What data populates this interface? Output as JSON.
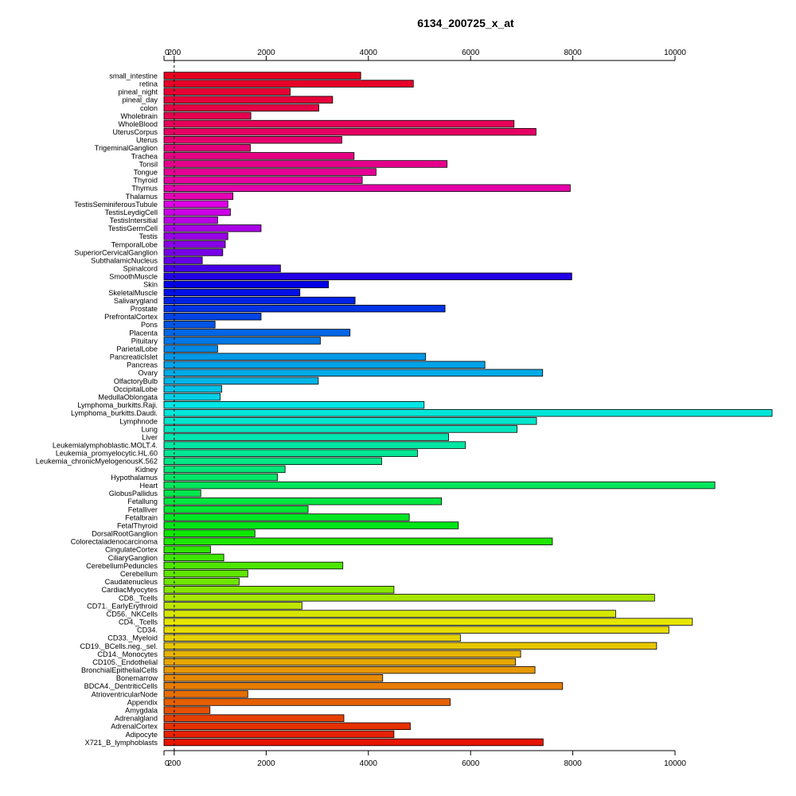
{
  "chart_data": {
    "type": "bar",
    "orientation": "horizontal",
    "title": "6134_200725_x_at",
    "xlabel": "",
    "ylabel": "",
    "xlim": [
      0,
      12000
    ],
    "ticks": [
      {
        "value": 0,
        "label": "0"
      },
      {
        "value": 200,
        "label": "200"
      },
      {
        "value": 2000,
        "label": "2000"
      },
      {
        "value": 4000,
        "label": "4000"
      },
      {
        "value": 6000,
        "label": "6000"
      },
      {
        "value": 8000,
        "label": "8000"
      },
      {
        "value": 10000,
        "label": "10000"
      }
    ],
    "reference_line": 200,
    "grid": false,
    "bars": [
      {
        "label": "small_intestine",
        "value": 3850,
        "color": "#e6001e"
      },
      {
        "label": "retina",
        "value": 4880,
        "color": "#e60028"
      },
      {
        "label": "pineal_night",
        "value": 2470,
        "color": "#e60032"
      },
      {
        "label": "pineal_day",
        "value": 3300,
        "color": "#e6003c"
      },
      {
        "label": "colon",
        "value": 3030,
        "color": "#e60046"
      },
      {
        "label": "Wholebrain",
        "value": 1700,
        "color": "#e60050"
      },
      {
        "label": "WholeBlood",
        "value": 6850,
        "color": "#e6005a"
      },
      {
        "label": "UterusCorpus",
        "value": 7280,
        "color": "#e60064"
      },
      {
        "label": "Uterus",
        "value": 3480,
        "color": "#e6006e"
      },
      {
        "label": "TrigeminalGanglion",
        "value": 1690,
        "color": "#e60078"
      },
      {
        "label": "Trachea",
        "value": 3720,
        "color": "#e60082"
      },
      {
        "label": "Tonsil",
        "value": 5540,
        "color": "#e6008c"
      },
      {
        "label": "Tongue",
        "value": 4150,
        "color": "#e60096"
      },
      {
        "label": "Thyroid",
        "value": 3880,
        "color": "#e600a0"
      },
      {
        "label": "Thymus",
        "value": 7950,
        "color": "#e600aa"
      },
      {
        "label": "Thalamus",
        "value": 1350,
        "color": "#e600b4"
      },
      {
        "label": "TestisSeminiferousTubule",
        "value": 1250,
        "color": "#dd00e6"
      },
      {
        "label": "TestisLeydigCell",
        "value": 1300,
        "color": "#cc00e6"
      },
      {
        "label": "TestisIntersitial",
        "value": 1050,
        "color": "#bb00e6"
      },
      {
        "label": "TestisGermCell",
        "value": 1900,
        "color": "#aa00e6"
      },
      {
        "label": "Testis",
        "value": 1250,
        "color": "#9900e6"
      },
      {
        "label": "TemporalLobe",
        "value": 1200,
        "color": "#8800e6"
      },
      {
        "label": "SuperiorCervicalGanglion",
        "value": 1150,
        "color": "#7700e6"
      },
      {
        "label": "SubthalamicNucleus",
        "value": 750,
        "color": "#6600e6"
      },
      {
        "label": "Spinalcord",
        "value": 2280,
        "color": "#4400e6"
      },
      {
        "label": "SmoothMuscle",
        "value": 7980,
        "color": "#2200e6"
      },
      {
        "label": "Skin",
        "value": 3220,
        "color": "#0000e6"
      },
      {
        "label": "SkeletalMuscle",
        "value": 2660,
        "color": "#0011e6"
      },
      {
        "label": "Salivarygland",
        "value": 3740,
        "color": "#0022e6"
      },
      {
        "label": "Prostate",
        "value": 5500,
        "color": "#0033e6"
      },
      {
        "label": "PrefrontalCortex",
        "value": 1900,
        "color": "#0044e6"
      },
      {
        "label": "Pons",
        "value": 1000,
        "color": "#0055e6"
      },
      {
        "label": "Placenta",
        "value": 3640,
        "color": "#0066e6"
      },
      {
        "label": "Pituitary",
        "value": 3060,
        "color": "#0077e6"
      },
      {
        "label": "ParietalLobe",
        "value": 1050,
        "color": "#0088e6"
      },
      {
        "label": "PancreaticIslet",
        "value": 5120,
        "color": "#0099e6"
      },
      {
        "label": "Pancreas",
        "value": 6280,
        "color": "#00a2e6"
      },
      {
        "label": "Ovary",
        "value": 7410,
        "color": "#00aae6"
      },
      {
        "label": "OlfactoryBulb",
        "value": 3020,
        "color": "#00b4e6"
      },
      {
        "label": "OccipitalLobe",
        "value": 1130,
        "color": "#00c2e6"
      },
      {
        "label": "MedullaOblongata",
        "value": 1100,
        "color": "#00d0e6"
      },
      {
        "label": "Lymphoma_burkitts.Raji.",
        "value": 5090,
        "color": "#00e6e6"
      },
      {
        "label": "Lymphoma_burkitts.Daudi.",
        "value": 11900,
        "color": "#00e6d9"
      },
      {
        "label": "Lymphnode",
        "value": 7290,
        "color": "#00e6cc"
      },
      {
        "label": "Lung",
        "value": 6910,
        "color": "#00e6be"
      },
      {
        "label": "Liver",
        "value": 5570,
        "color": "#00e6b0"
      },
      {
        "label": "Leukemialymphoblastic.MOLT.4.",
        "value": 5900,
        "color": "#00e6a2"
      },
      {
        "label": "Leukemia_promyelocytic.HL.60",
        "value": 4960,
        "color": "#00e694"
      },
      {
        "label": "Leukemia_chronicMyelogenousK.562",
        "value": 4260,
        "color": "#00e686"
      },
      {
        "label": "Kidney",
        "value": 2370,
        "color": "#00e678"
      },
      {
        "label": "Hypothalamus",
        "value": 2220,
        "color": "#00e66a"
      },
      {
        "label": "Heart",
        "value": 10780,
        "color": "#00e65c"
      },
      {
        "label": "GlobusPallidus",
        "value": 720,
        "color": "#00e64e"
      },
      {
        "label": "Fetallung",
        "value": 5430,
        "color": "#00e640"
      },
      {
        "label": "Fetalliver",
        "value": 2820,
        "color": "#00e632"
      },
      {
        "label": "Fetalbrain",
        "value": 4800,
        "color": "#00e624"
      },
      {
        "label": "FetalThyroid",
        "value": 5760,
        "color": "#00e616"
      },
      {
        "label": "DorsalRootGanglion",
        "value": 1780,
        "color": "#0ee600"
      },
      {
        "label": "Colorectaladenocarcinoma",
        "value": 7600,
        "color": "#1ee600"
      },
      {
        "label": "CingulateCortex",
        "value": 910,
        "color": "#2ee600"
      },
      {
        "label": "CiliaryGanglion",
        "value": 1170,
        "color": "#3ee600"
      },
      {
        "label": "CerebellumPeduncles",
        "value": 3500,
        "color": "#4ee600"
      },
      {
        "label": "Cerebellum",
        "value": 1640,
        "color": "#5ee600"
      },
      {
        "label": "Caudatenucleus",
        "value": 1470,
        "color": "#6ee600"
      },
      {
        "label": "CardiacMyocytes",
        "value": 4500,
        "color": "#86e600"
      },
      {
        "label": "CD8._Tcells",
        "value": 9600,
        "color": "#a6e600"
      },
      {
        "label": "CD71._EarlyErythroid",
        "value": 2700,
        "color": "#bee600"
      },
      {
        "label": "CD56._NKCells",
        "value": 8840,
        "color": "#d6e600"
      },
      {
        "label": "CD4._Tcells",
        "value": 10340,
        "color": "#e6e600"
      },
      {
        "label": "CD34.",
        "value": 9880,
        "color": "#e6dc00"
      },
      {
        "label": "CD33._Myeloid",
        "value": 5800,
        "color": "#e6d200"
      },
      {
        "label": "CD19._BCells.neg._sel.",
        "value": 9640,
        "color": "#e6c600"
      },
      {
        "label": "CD14._Monocytes",
        "value": 6980,
        "color": "#e6b400"
      },
      {
        "label": "CD105._Endothelial",
        "value": 6880,
        "color": "#e6a600"
      },
      {
        "label": "BronchialEpithelialCells",
        "value": 7260,
        "color": "#e69800"
      },
      {
        "label": "Bonemarrow",
        "value": 4280,
        "color": "#e68a00"
      },
      {
        "label": "BDCA4._DentriticCells",
        "value": 7800,
        "color": "#e67c00"
      },
      {
        "label": "AtrioventricularNode",
        "value": 1640,
        "color": "#e66e00"
      },
      {
        "label": "Appendix",
        "value": 5600,
        "color": "#e66000"
      },
      {
        "label": "Amygdala",
        "value": 900,
        "color": "#e65000"
      },
      {
        "label": "Adrenalgland",
        "value": 3520,
        "color": "#e64000"
      },
      {
        "label": "AdrenalCortex",
        "value": 4820,
        "color": "#e63000"
      },
      {
        "label": "Adipocyte",
        "value": 4500,
        "color": "#e62200"
      },
      {
        "label": "X721_B_lymphoblasts",
        "value": 7420,
        "color": "#e61400"
      }
    ]
  }
}
